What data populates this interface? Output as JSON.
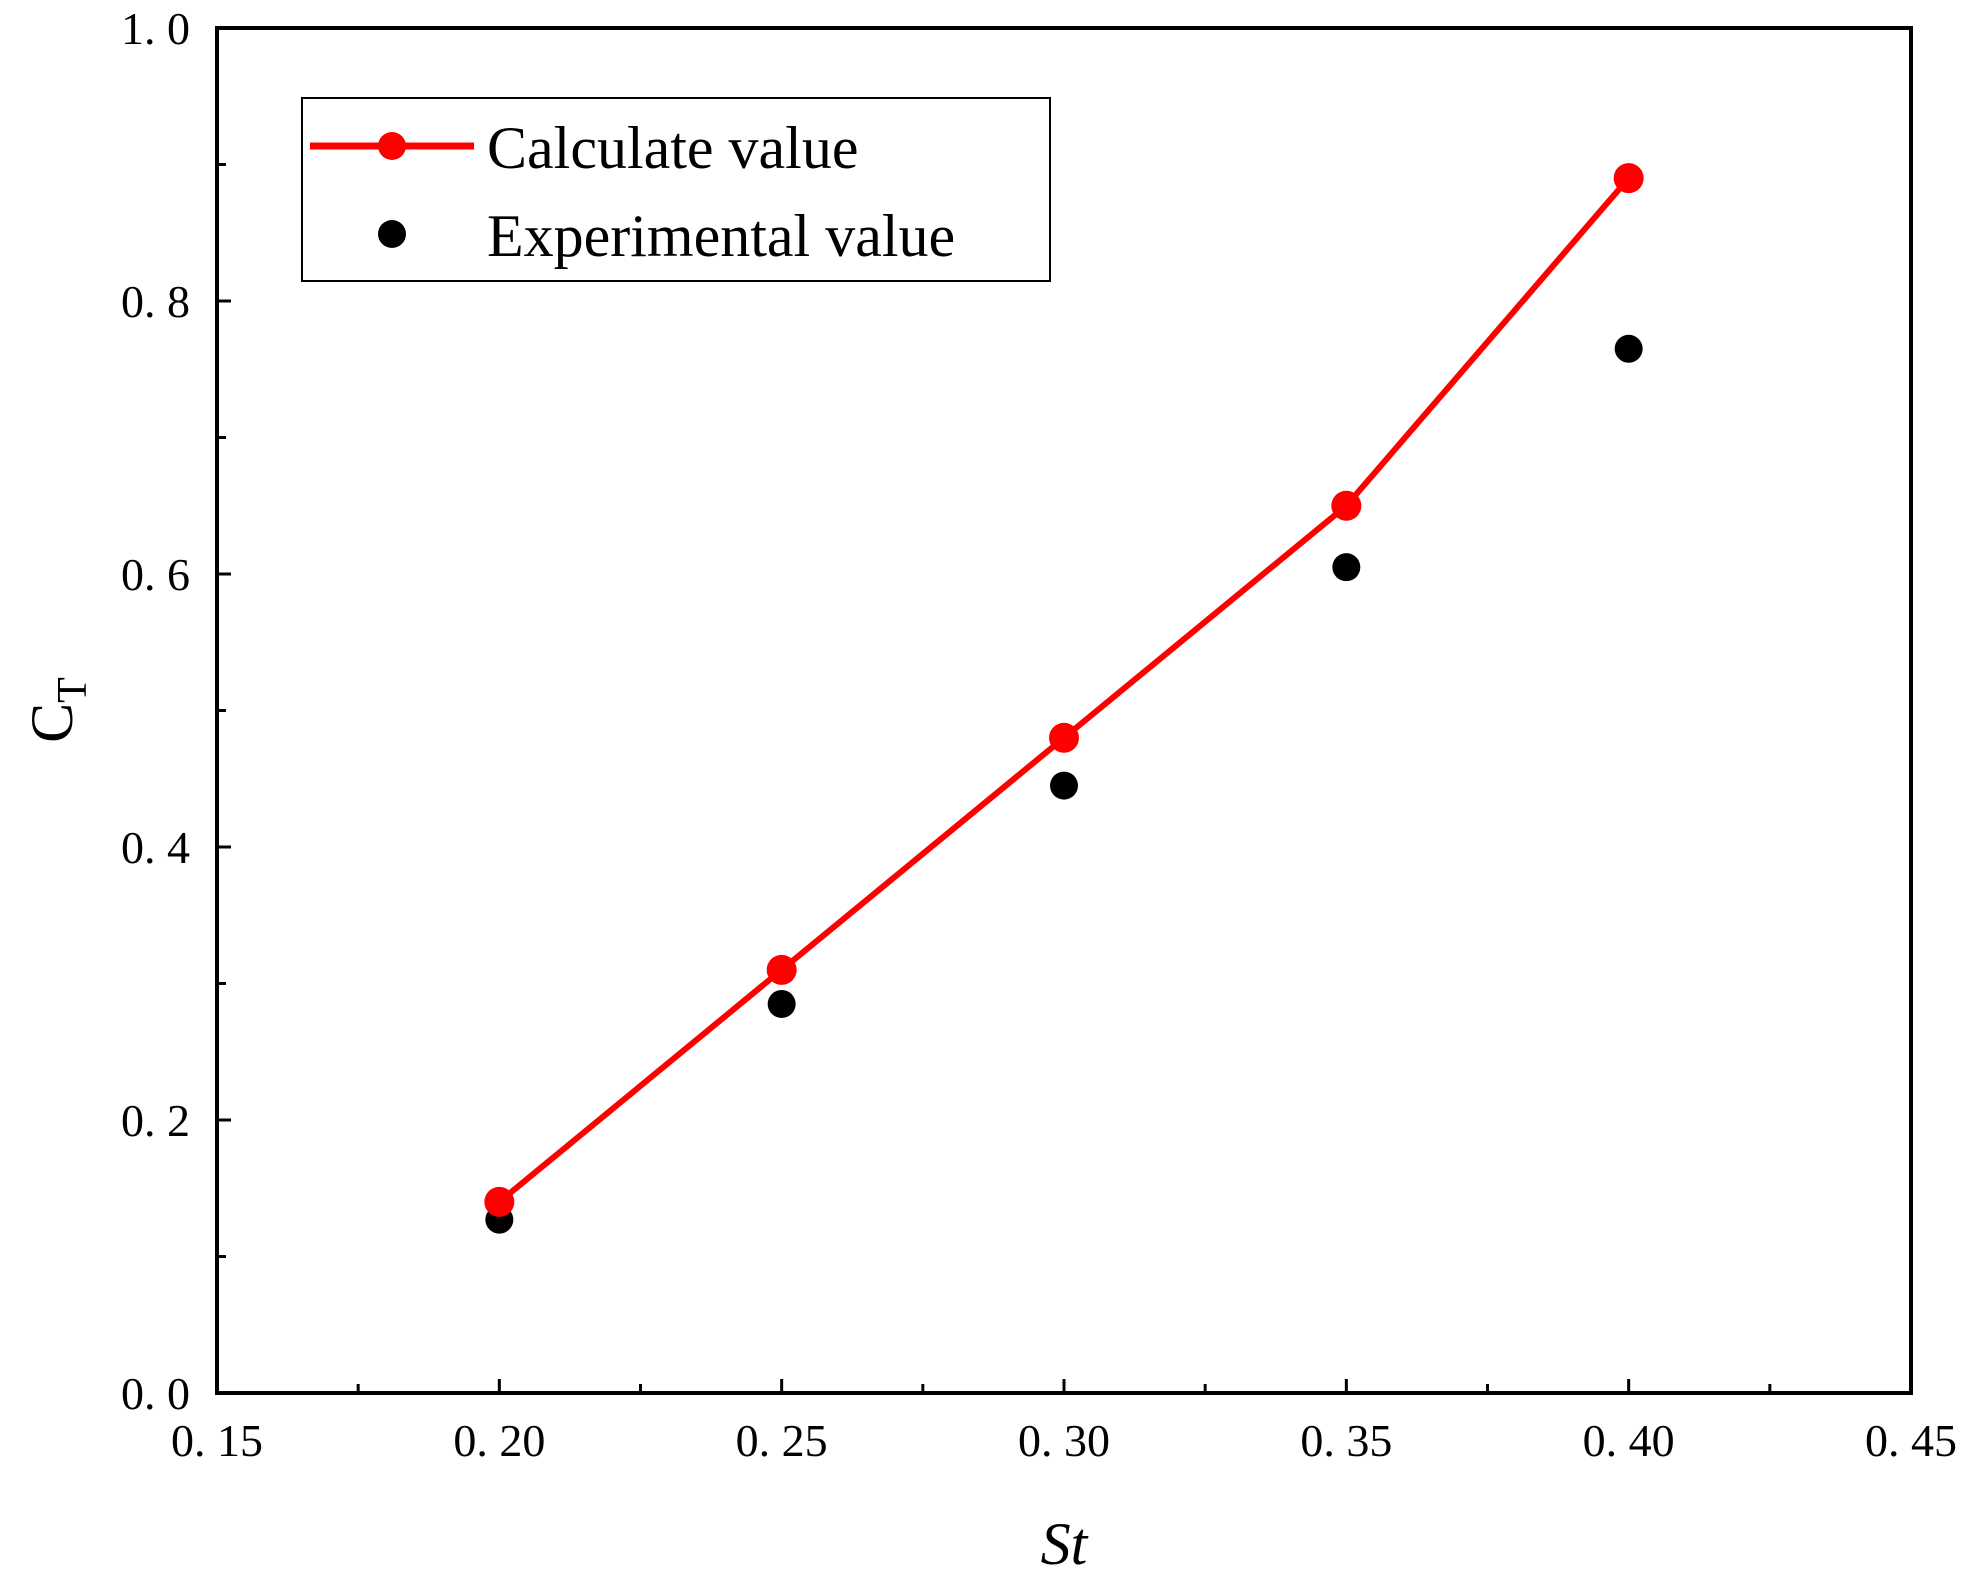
{
  "chart_data": {
    "type": "line",
    "title": "",
    "xlabel": "St",
    "ylabel": "C",
    "ylabel_subscript": "T",
    "xlim": [
      0.15,
      0.45
    ],
    "ylim": [
      0.0,
      1.0
    ],
    "x_major_ticks": [
      0.15,
      0.2,
      0.25,
      0.3,
      0.35,
      0.4,
      0.45
    ],
    "x_tick_labels": [
      "0. 15",
      "0. 20",
      "0. 25",
      "0. 30",
      "0. 35",
      "0. 40",
      "0. 45"
    ],
    "y_major_ticks": [
      0.0,
      0.2,
      0.4,
      0.6,
      0.8,
      1.0
    ],
    "y_tick_labels": [
      "0. 0",
      "0. 2",
      "0. 4",
      "0. 6",
      "0. 8",
      "1. 0"
    ],
    "x_minor_ticks": [
      0.175,
      0.225,
      0.275,
      0.325,
      0.375,
      0.425
    ],
    "y_minor_ticks": [
      0.1,
      0.3,
      0.5,
      0.7,
      0.9
    ],
    "legend_position": "top-left",
    "grid": false,
    "series": [
      {
        "name": "Calculate value",
        "style": "line-marker",
        "color": "#ff0000",
        "x": [
          0.2,
          0.25,
          0.3,
          0.35,
          0.4
        ],
        "y": [
          0.14,
          0.31,
          0.48,
          0.65,
          0.89
        ]
      },
      {
        "name": "Experimental value",
        "style": "scatter",
        "color": "#000000",
        "x": [
          0.2,
          0.25,
          0.3,
          0.35,
          0.4
        ],
        "y": [
          0.127,
          0.285,
          0.445,
          0.605,
          0.765
        ]
      }
    ]
  }
}
